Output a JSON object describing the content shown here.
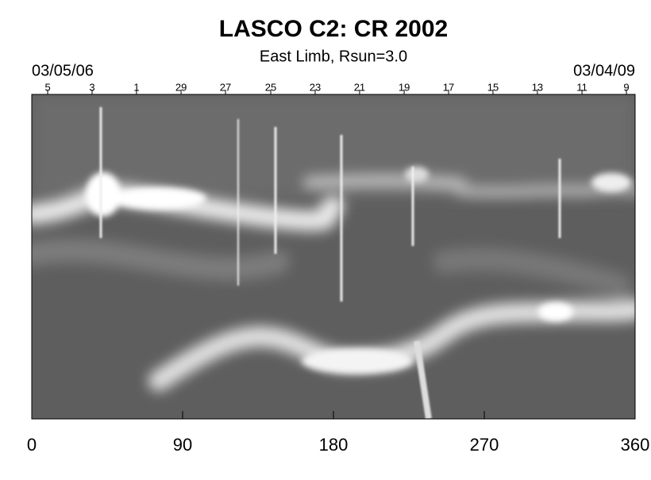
{
  "chart_data": {
    "type": "image",
    "title": "LASCO C2: CR 2002",
    "subtitle": "East Limb, Rsun=3.0",
    "x2_start_label": "03/05/06",
    "x2_end_label": "03/04/09",
    "xlim": [
      0,
      360
    ],
    "xticks": [
      0,
      90,
      180,
      270,
      360
    ],
    "x2ticks": [
      {
        "value": 9.5,
        "label": "5"
      },
      {
        "value": 36.0,
        "label": "3"
      },
      {
        "value": 62.5,
        "label": "1"
      },
      {
        "value": 89.1,
        "label": "29"
      },
      {
        "value": 115.6,
        "label": "27"
      },
      {
        "value": 142.6,
        "label": "25"
      },
      {
        "value": 169.1,
        "label": "23"
      },
      {
        "value": 195.6,
        "label": "21"
      },
      {
        "value": 222.2,
        "label": "19"
      },
      {
        "value": 248.7,
        "label": "17"
      },
      {
        "value": 275.2,
        "label": "15"
      },
      {
        "value": 301.7,
        "label": "13"
      },
      {
        "value": 328.3,
        "label": "11"
      },
      {
        "value": 354.8,
        "label": "9"
      }
    ],
    "colormap": "gray"
  }
}
